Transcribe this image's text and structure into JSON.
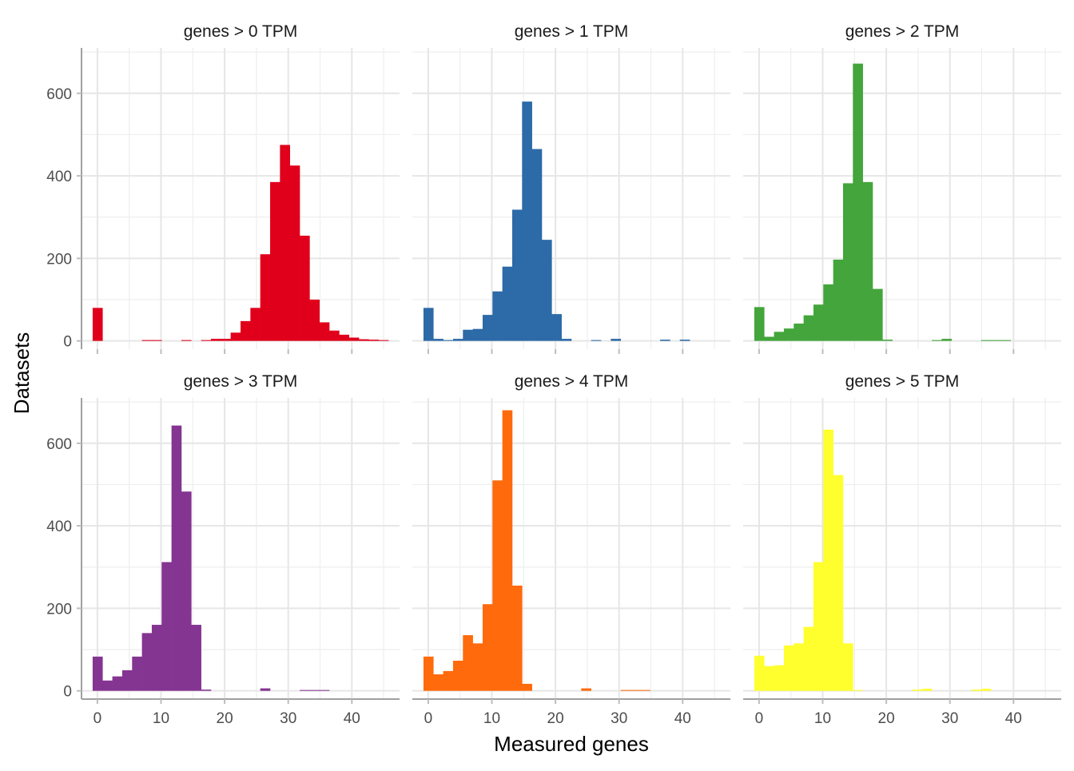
{
  "chart_data": {
    "type": "bar",
    "subtype": "faceted-histogram",
    "xlabel": "Measured genes",
    "ylabel": "Datasets",
    "xlim": [
      -2.5,
      47.5
    ],
    "ylim": [
      -20,
      710
    ],
    "x_ticks": [
      0,
      10,
      20,
      30,
      40
    ],
    "y_ticks": [
      0,
      200,
      400,
      600
    ],
    "grid": true,
    "facet_layout": "2 rows x 3 columns",
    "bin_starts": [
      -0.75,
      0.8,
      2.35,
      3.9,
      5.45,
      7.0,
      8.55,
      10.1,
      11.65,
      13.2,
      14.75,
      16.3,
      17.85,
      19.4,
      20.95,
      22.5,
      24.05,
      25.6,
      27.15,
      28.7,
      30.25,
      31.8,
      33.35,
      34.9,
      36.45,
      38.0,
      39.55,
      41.1,
      42.65,
      44.2
    ],
    "bin_width": 1.55,
    "panels": [
      {
        "title": "genes > 0 TPM",
        "color": "#e0001b",
        "values": [
          80,
          0,
          0,
          0,
          0,
          2,
          2,
          0,
          0,
          2,
          0,
          2,
          5,
          5,
          20,
          48,
          80,
          210,
          385,
          475,
          425,
          255,
          100,
          45,
          25,
          15,
          8,
          4,
          3,
          2
        ]
      },
      {
        "title": "genes > 1 TPM",
        "color": "#2c6aa8",
        "values": [
          80,
          5,
          2,
          5,
          27,
          29,
          63,
          120,
          180,
          318,
          580,
          465,
          245,
          65,
          5,
          0,
          0,
          2,
          0,
          5,
          0,
          0,
          0,
          0,
          3,
          0,
          3,
          0,
          0,
          0
        ]
      },
      {
        "title": "genes > 2 TPM",
        "color": "#43a53b",
        "values": [
          82,
          10,
          22,
          30,
          42,
          62,
          88,
          137,
          197,
          382,
          672,
          385,
          126,
          3,
          0,
          0,
          0,
          0,
          2,
          5,
          0,
          0,
          0,
          2,
          2,
          2,
          0,
          0,
          0,
          0
        ]
      },
      {
        "title": "genes > 3 TPM",
        "color": "#843491",
        "values": [
          83,
          25,
          35,
          50,
          83,
          140,
          160,
          312,
          643,
          483,
          160,
          3,
          0,
          0,
          0,
          0,
          0,
          6,
          0,
          0,
          0,
          2,
          2,
          2,
          0,
          0,
          0,
          0,
          0,
          0
        ]
      },
      {
        "title": "genes > 4 TPM",
        "color": "#fe6a0c",
        "values": [
          83,
          40,
          48,
          73,
          135,
          115,
          210,
          510,
          680,
          255,
          17,
          0,
          0,
          0,
          0,
          0,
          6,
          0,
          0,
          0,
          2,
          2,
          2,
          0,
          0,
          0,
          0,
          0,
          0,
          0
        ]
      },
      {
        "title": "genes > 5 TPM",
        "color": "#ffff2e",
        "values": [
          85,
          60,
          62,
          110,
          115,
          155,
          312,
          633,
          523,
          115,
          2,
          0,
          0,
          0,
          0,
          0,
          3,
          5,
          0,
          0,
          0,
          0,
          3,
          5,
          0,
          0,
          0,
          0,
          0,
          0
        ]
      }
    ]
  }
}
